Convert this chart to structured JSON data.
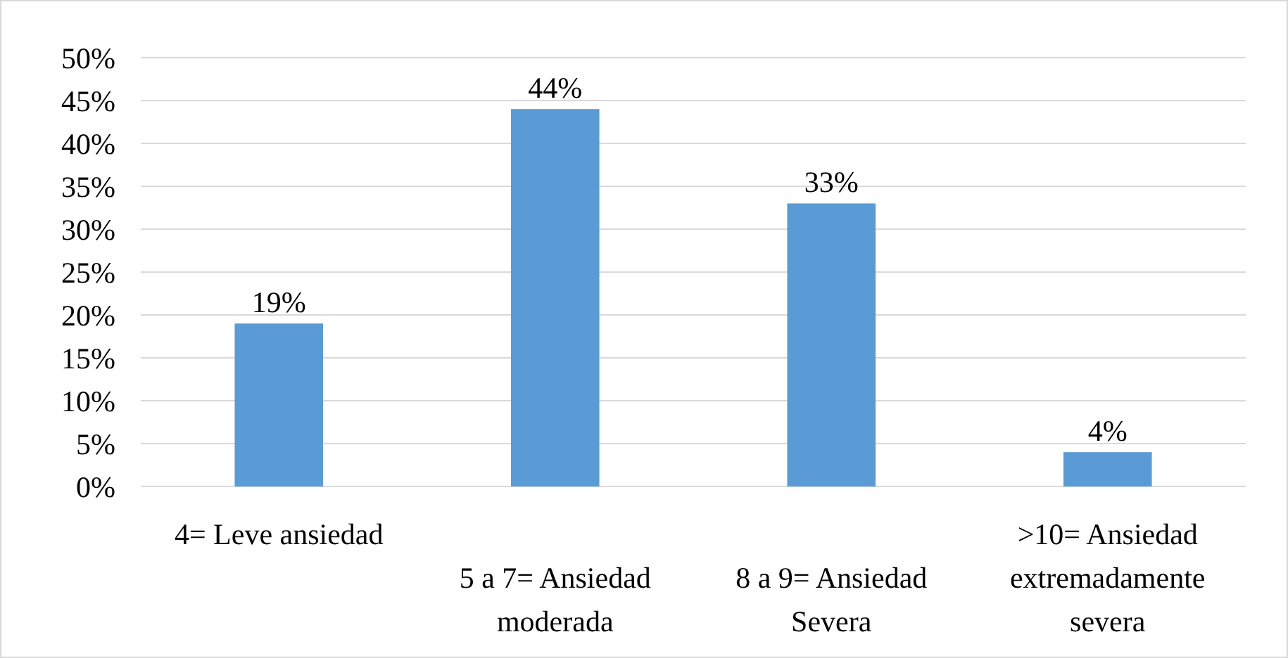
{
  "chart_data": {
    "type": "bar",
    "categories": [
      "4= Leve ansiedad",
      "5 a 7= Ansiedad moderada",
      "8 a 9= Ansiedad Severa",
      ">10= Ansiedad extremadamente severa"
    ],
    "values": [
      19,
      44,
      33,
      4
    ],
    "value_labels": [
      "19%",
      "44%",
      "33%",
      "4%"
    ],
    "color": "#5b9bd5",
    "ylim": [
      0,
      50
    ],
    "yticks": [
      {
        "value": 0,
        "label": "0%"
      },
      {
        "value": 5,
        "label": "5%"
      },
      {
        "value": 10,
        "label": "10%"
      },
      {
        "value": 15,
        "label": "15%"
      },
      {
        "value": 20,
        "label": "20%"
      },
      {
        "value": 25,
        "label": "25%"
      },
      {
        "value": 30,
        "label": "30%"
      },
      {
        "value": 35,
        "label": "35%"
      },
      {
        "value": 40,
        "label": "40%"
      },
      {
        "value": 45,
        "label": "45%"
      },
      {
        "value": 50,
        "label": "50%"
      }
    ],
    "grid": "y"
  }
}
